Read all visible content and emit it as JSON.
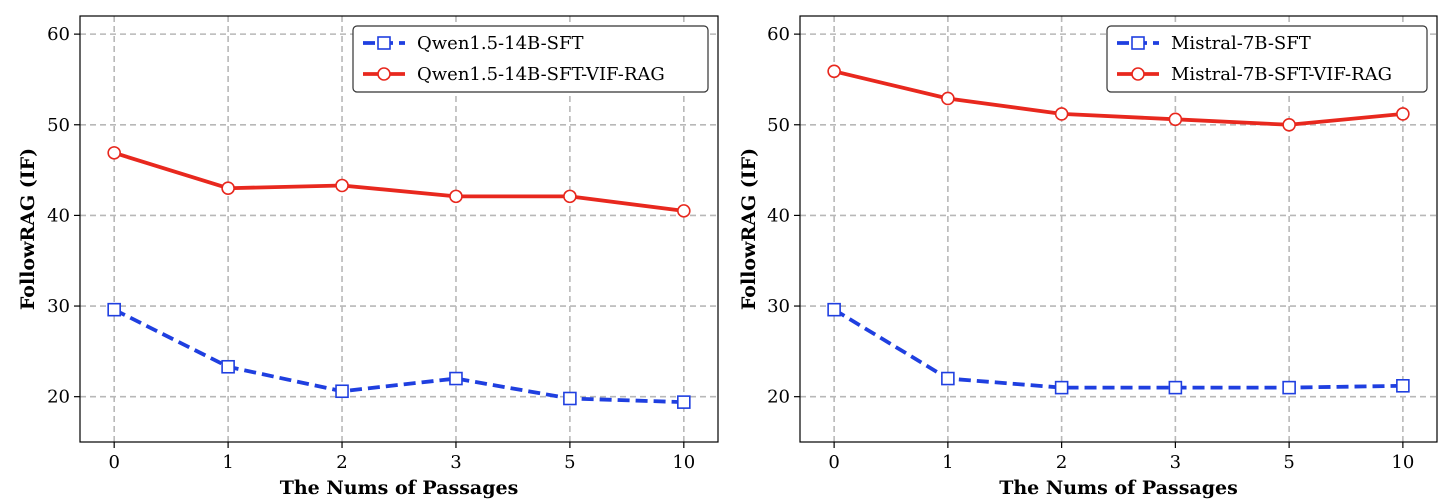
{
  "chart_data": [
    {
      "type": "line",
      "categories": [
        "0",
        "1",
        "2",
        "3",
        "5",
        "10"
      ],
      "xlabel": "The Nums of Passages",
      "ylabel": "FollowRAG (IF)",
      "ylim": [
        15,
        62
      ],
      "yticks": [
        20,
        30,
        40,
        50,
        60
      ],
      "grid": true,
      "legend": "top-right",
      "series": [
        {
          "name": "Qwen1.5-14B-SFT",
          "values": [
            29.6,
            23.3,
            20.6,
            22.0,
            19.8,
            19.4
          ],
          "color": "#1f3fe0",
          "style": "dashed",
          "marker": "square"
        },
        {
          "name": "Qwen1.5-14B-SFT-VIF-RAG",
          "values": [
            46.9,
            43.0,
            43.3,
            42.1,
            42.1,
            40.5
          ],
          "color": "#e8281e",
          "style": "solid",
          "marker": "circle"
        }
      ]
    },
    {
      "type": "line",
      "categories": [
        "0",
        "1",
        "2",
        "3",
        "5",
        "10"
      ],
      "xlabel": "The Nums of Passages",
      "ylabel": "FollowRAG (IF)",
      "ylim": [
        15,
        62
      ],
      "yticks": [
        20,
        30,
        40,
        50,
        60
      ],
      "grid": true,
      "legend": "top-right",
      "series": [
        {
          "name": "Mistral-7B-SFT",
          "values": [
            29.6,
            22.0,
            21.0,
            21.0,
            21.0,
            21.2
          ],
          "color": "#1f3fe0",
          "style": "dashed",
          "marker": "square"
        },
        {
          "name": "Mistral-7B-SFT-VIF-RAG",
          "values": [
            55.9,
            52.9,
            51.2,
            50.6,
            50.0,
            51.2
          ],
          "color": "#e8281e",
          "style": "solid",
          "marker": "circle"
        }
      ]
    }
  ]
}
